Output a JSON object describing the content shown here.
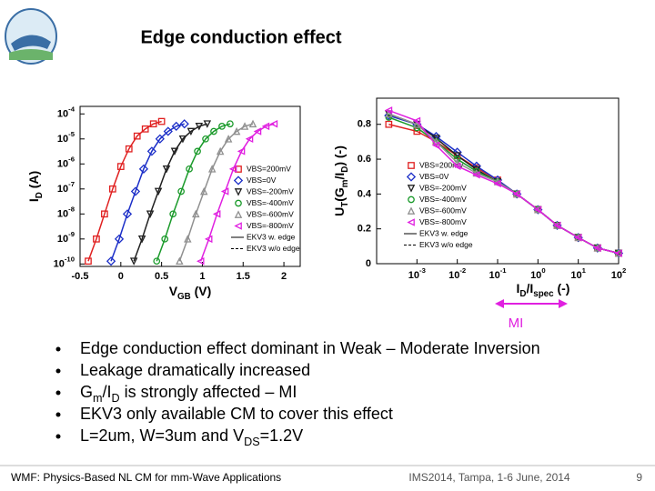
{
  "title": "Edge conduction effect",
  "chart_data": [
    {
      "type": "scatter",
      "ylabel": [
        "I",
        "D",
        " (A)"
      ],
      "xlabel": [
        "V",
        "GB",
        " (V)"
      ],
      "ylog": true,
      "xlim": [
        -0.5,
        2.2
      ],
      "ylim": [
        8e-11,
        0.0002
      ],
      "xticks": [
        -0.5,
        0,
        0.5,
        1,
        1.5,
        2
      ],
      "yticks": [
        {
          "value": 0.0001,
          "label": "10-4"
        },
        {
          "value": 1e-05,
          "label": "10-5"
        },
        {
          "value": 1e-06,
          "label": "10-6"
        },
        {
          "value": 1e-07,
          "label": "10-7"
        },
        {
          "value": 1e-08,
          "label": "10-8"
        },
        {
          "value": 1e-09,
          "label": "10-9"
        },
        {
          "value": 1e-10,
          "label": "10-10"
        }
      ],
      "series": [
        {
          "name": "VBS=200mV",
          "color": "#e02020",
          "marker": "square",
          "x": [
            -0.4,
            -0.3,
            -0.2,
            -0.1,
            0,
            0.1,
            0.2,
            0.3,
            0.4,
            0.5
          ],
          "values": [
            1.3e-10,
            1e-09,
            1e-08,
            1e-07,
            7.9e-07,
            4e-06,
            1.3e-05,
            2.5e-05,
            4e-05,
            5e-05
          ]
        },
        {
          "name": "VBS=0V",
          "color": "#1c2fc8",
          "marker": "diamond",
          "x": [
            -0.12,
            -0.02,
            0.08,
            0.18,
            0.28,
            0.38,
            0.48,
            0.58,
            0.68,
            0.78
          ],
          "values": [
            1.3e-10,
            1e-09,
            1e-08,
            8e-08,
            6.3e-07,
            3.2e-06,
            1e-05,
            2e-05,
            3.2e-05,
            4e-05
          ]
        },
        {
          "name": "VBS=-200mV",
          "color": "#202020",
          "marker": "tridown",
          "x": [
            0.16,
            0.26,
            0.36,
            0.46,
            0.56,
            0.66,
            0.76,
            0.86,
            0.96,
            1.06
          ],
          "values": [
            1.3e-10,
            1e-09,
            1e-08,
            8e-08,
            6.3e-07,
            3.2e-06,
            1e-05,
            2e-05,
            3.2e-05,
            4e-05
          ]
        },
        {
          "name": "VBS=-400mV",
          "color": "#1a9a2a",
          "marker": "circle",
          "x": [
            0.44,
            0.54,
            0.64,
            0.74,
            0.84,
            0.94,
            1.04,
            1.14,
            1.24,
            1.34
          ],
          "values": [
            1.3e-10,
            1e-09,
            1e-08,
            8e-08,
            6.3e-07,
            3.2e-06,
            1e-05,
            2e-05,
            3.2e-05,
            4e-05
          ]
        },
        {
          "name": "VBS=-600mV",
          "color": "#909090",
          "marker": "triup",
          "x": [
            0.72,
            0.82,
            0.92,
            1.02,
            1.12,
            1.22,
            1.32,
            1.42,
            1.52,
            1.62
          ],
          "values": [
            1.3e-10,
            1e-09,
            1e-08,
            8e-08,
            6.3e-07,
            3.2e-06,
            1e-05,
            2e-05,
            3.2e-05,
            4e-05
          ]
        },
        {
          "name": "VBS=-800mV",
          "color": "#e020e0",
          "marker": "trileft",
          "x": [
            0.98,
            1.08,
            1.18,
            1.28,
            1.38,
            1.48,
            1.58,
            1.68,
            1.78,
            1.88
          ],
          "values": [
            1.3e-10,
            1e-09,
            1e-08,
            8e-08,
            6.3e-07,
            3.2e-06,
            1e-05,
            2e-05,
            3.2e-05,
            4e-05
          ]
        }
      ],
      "model_legend": [
        {
          "name": "EKV3 w. edge",
          "dash": false
        },
        {
          "name": "EKV3 w/o edge",
          "dash": true
        }
      ]
    },
    {
      "type": "scatter",
      "ylabel": [
        "U",
        "T",
        "(G",
        "m",
        "/I",
        "D",
        ") (-)"
      ],
      "xlabel": [
        "I",
        "D",
        "/I",
        "spec",
        " (-)"
      ],
      "xlog": true,
      "xlim": [
        0.0001,
        100
      ],
      "ylim": [
        0,
        0.95
      ],
      "xticks": [
        {
          "value": 0.001,
          "label": "10-3"
        },
        {
          "value": 0.01,
          "label": "10-2"
        },
        {
          "value": 0.1,
          "label": "10-1"
        },
        {
          "value": 1,
          "label": "100"
        },
        {
          "value": 10,
          "label": "101"
        },
        {
          "value": 100,
          "label": "102"
        }
      ],
      "yticks": [
        0,
        0.2,
        0.4,
        0.6,
        0.8
      ],
      "series": [
        {
          "name": "VBS=200mV",
          "color": "#e02020",
          "marker": "square",
          "x": [
            0.0002,
            0.001,
            0.003,
            0.01,
            0.03,
            0.1,
            0.3,
            1,
            3,
            10,
            30,
            100
          ],
          "values": [
            0.8,
            0.76,
            0.7,
            0.62,
            0.55,
            0.48,
            0.4,
            0.31,
            0.22,
            0.15,
            0.09,
            0.06
          ]
        },
        {
          "name": "VBS=0V",
          "color": "#1c2fc8",
          "marker": "diamond",
          "x": [
            0.0002,
            0.001,
            0.003,
            0.01,
            0.03,
            0.1,
            0.3,
            1,
            3,
            10,
            30,
            100
          ],
          "values": [
            0.85,
            0.8,
            0.73,
            0.64,
            0.56,
            0.48,
            0.4,
            0.31,
            0.22,
            0.15,
            0.09,
            0.06
          ]
        },
        {
          "name": "VBS=-200mV",
          "color": "#202020",
          "marker": "tridown",
          "x": [
            0.0002,
            0.001,
            0.003,
            0.01,
            0.03,
            0.1,
            0.3,
            1,
            3,
            10,
            30,
            100
          ],
          "values": [
            0.86,
            0.8,
            0.72,
            0.62,
            0.54,
            0.47,
            0.4,
            0.31,
            0.22,
            0.15,
            0.09,
            0.06
          ]
        },
        {
          "name": "VBS=-400mV",
          "color": "#1a9a2a",
          "marker": "circle",
          "x": [
            0.0002,
            0.001,
            0.003,
            0.01,
            0.03,
            0.1,
            0.3,
            1,
            3,
            10,
            30,
            100
          ],
          "values": [
            0.84,
            0.78,
            0.7,
            0.6,
            0.53,
            0.47,
            0.4,
            0.31,
            0.22,
            0.15,
            0.09,
            0.06
          ]
        },
        {
          "name": "VBS=-600mV",
          "color": "#909090",
          "marker": "triup",
          "x": [
            0.0002,
            0.001,
            0.003,
            0.01,
            0.03,
            0.1,
            0.3,
            1,
            3,
            10,
            30,
            100
          ],
          "values": [
            0.86,
            0.8,
            0.7,
            0.58,
            0.52,
            0.47,
            0.4,
            0.31,
            0.22,
            0.15,
            0.09,
            0.06
          ]
        },
        {
          "name": "VBS=-800mV",
          "color": "#e020e0",
          "marker": "trileft",
          "x": [
            0.0002,
            0.001,
            0.003,
            0.01,
            0.03,
            0.1,
            0.3,
            1,
            3,
            10,
            30,
            100
          ],
          "values": [
            0.88,
            0.82,
            0.68,
            0.56,
            0.51,
            0.46,
            0.4,
            0.31,
            0.22,
            0.15,
            0.09,
            0.06
          ]
        }
      ],
      "model_legend": [
        {
          "name": "EKV3 w. edge",
          "dash": false
        },
        {
          "name": "EKV3 w/o edge",
          "dash": true
        }
      ]
    }
  ],
  "annotation": "MI",
  "bullets": [
    [
      "Edge conduction effect dominant in Weak – Moderate Inversion"
    ],
    [
      "Leakage dramatically increased"
    ],
    [
      "G",
      "m",
      "/I",
      "D",
      " is strongly affected – MI"
    ],
    [
      "EKV3 only available CM to cover this effect"
    ],
    [
      "L=2um, W=3um and V",
      "DS",
      "=1.2V"
    ]
  ],
  "footer": {
    "left": "WMF: Physics-Based NL CM for mm-Wave Applications",
    "center": "IMS2014, Tampa, 1-6 June, 2014",
    "page": "9"
  }
}
